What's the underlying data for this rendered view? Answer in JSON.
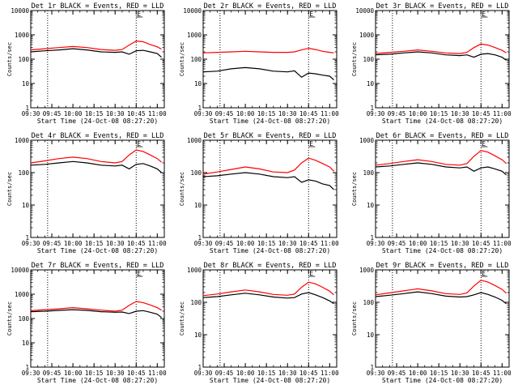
{
  "figure": {
    "xlabel": "Start Time (24-Oct-08 08:27:20)",
    "ylabel": "Counts/sec",
    "x_tick_labels": [
      "09:30",
      "09:45",
      "10:00",
      "10:15",
      "10:30",
      "10:45",
      "11:00"
    ],
    "y_tick_labels_max4": [
      "1",
      "10",
      "100",
      "1000",
      "10000"
    ],
    "y_tick_labels_max3": [
      "1",
      "10",
      "100",
      "1000"
    ],
    "annotation_letter": "E",
    "colors": {
      "events": "#000000",
      "lld": "#ff0000",
      "axis": "#000000",
      "guide": "#000000"
    }
  },
  "chart_data": [
    {
      "type": "line",
      "title": "Det 1r BLACK = Events, RED = LLD",
      "y_scale": "log",
      "ylim": [
        1,
        10000
      ],
      "xlim": [
        "09:30",
        "11:05"
      ],
      "vlines": [
        "09:42",
        "10:45"
      ],
      "series": [
        {
          "name": "Events",
          "color": "#000000",
          "x": [
            "09:30",
            "09:40",
            "09:50",
            "10:00",
            "10:10",
            "10:20",
            "10:30",
            "10:35",
            "10:40",
            "10:45",
            "10:50",
            "10:55",
            "11:00",
            "11:03"
          ],
          "values": [
            200,
            220,
            240,
            270,
            240,
            200,
            190,
            200,
            160,
            220,
            230,
            200,
            170,
            120
          ]
        },
        {
          "name": "LLD",
          "color": "#ff0000",
          "x": [
            "09:30",
            "09:40",
            "09:50",
            "10:00",
            "10:10",
            "10:20",
            "10:30",
            "10:35",
            "10:40",
            "10:45",
            "10:50",
            "10:55",
            "11:00",
            "11:03"
          ],
          "values": [
            240,
            270,
            300,
            330,
            300,
            250,
            230,
            250,
            380,
            560,
            520,
            400,
            320,
            260
          ]
        }
      ]
    },
    {
      "type": "line",
      "title": "Det 2r BLACK = Events, RED = LLD",
      "y_scale": "log",
      "ylim": [
        1,
        10000
      ],
      "xlim": [
        "09:30",
        "11:05"
      ],
      "vlines": [
        "09:42",
        "10:45"
      ],
      "series": [
        {
          "name": "Events",
          "color": "#000000",
          "x": [
            "09:30",
            "09:40",
            "09:50",
            "10:00",
            "10:10",
            "10:20",
            "10:30",
            "10:35",
            "10:40",
            "10:45",
            "10:50",
            "10:55",
            "11:00",
            "11:03"
          ],
          "values": [
            30,
            32,
            40,
            45,
            40,
            32,
            30,
            33,
            18,
            27,
            25,
            22,
            20,
            14
          ]
        },
        {
          "name": "LLD",
          "color": "#ff0000",
          "x": [
            "09:30",
            "09:40",
            "09:50",
            "10:00",
            "10:10",
            "10:20",
            "10:30",
            "10:35",
            "10:40",
            "10:45",
            "10:50",
            "10:55",
            "11:00",
            "11:03"
          ],
          "values": [
            180,
            190,
            200,
            210,
            200,
            190,
            190,
            200,
            240,
            280,
            250,
            210,
            190,
            180
          ]
        }
      ]
    },
    {
      "type": "line",
      "title": "Det 3r BLACK = Events, RED = LLD",
      "y_scale": "log",
      "ylim": [
        1,
        10000
      ],
      "xlim": [
        "09:30",
        "11:05"
      ],
      "vlines": [
        "09:42",
        "10:45"
      ],
      "series": [
        {
          "name": "Events",
          "color": "#000000",
          "x": [
            "09:30",
            "09:40",
            "09:50",
            "10:00",
            "10:10",
            "10:20",
            "10:30",
            "10:35",
            "10:40",
            "10:45",
            "10:50",
            "10:55",
            "11:00",
            "11:03"
          ],
          "values": [
            150,
            160,
            180,
            200,
            180,
            150,
            140,
            150,
            120,
            160,
            170,
            150,
            120,
            90
          ]
        },
        {
          "name": "LLD",
          "color": "#ff0000",
          "x": [
            "09:30",
            "09:40",
            "09:50",
            "10:00",
            "10:10",
            "10:20",
            "10:30",
            "10:35",
            "10:40",
            "10:45",
            "10:50",
            "10:55",
            "11:00",
            "11:03"
          ],
          "values": [
            170,
            190,
            210,
            240,
            210,
            180,
            170,
            190,
            300,
            420,
            380,
            300,
            230,
            180
          ]
        }
      ]
    },
    {
      "type": "line",
      "title": "Det 4r BLACK = Events, RED = LLD",
      "y_scale": "log",
      "ylim": [
        1,
        1000
      ],
      "xlim": [
        "09:30",
        "11:05"
      ],
      "vlines": [
        "09:42",
        "10:45"
      ],
      "series": [
        {
          "name": "Events",
          "color": "#000000",
          "x": [
            "09:30",
            "09:40",
            "09:50",
            "10:00",
            "10:10",
            "10:20",
            "10:30",
            "10:35",
            "10:40",
            "10:45",
            "10:50",
            "10:55",
            "11:00",
            "11:03"
          ],
          "values": [
            170,
            180,
            200,
            220,
            200,
            170,
            160,
            170,
            130,
            180,
            190,
            160,
            130,
            100
          ]
        },
        {
          "name": "LLD",
          "color": "#ff0000",
          "x": [
            "09:30",
            "09:40",
            "09:50",
            "10:00",
            "10:10",
            "10:20",
            "10:30",
            "10:35",
            "10:40",
            "10:45",
            "10:50",
            "10:55",
            "11:00",
            "11:03"
          ],
          "values": [
            200,
            230,
            270,
            300,
            270,
            220,
            200,
            220,
            350,
            500,
            450,
            350,
            270,
            210
          ]
        }
      ]
    },
    {
      "type": "line",
      "title": "Det 5r BLACK = Events, RED = LLD",
      "y_scale": "log",
      "ylim": [
        1,
        1000
      ],
      "xlim": [
        "09:30",
        "11:05"
      ],
      "vlines": [
        "09:42",
        "10:45"
      ],
      "series": [
        {
          "name": "Events",
          "color": "#000000",
          "x": [
            "09:30",
            "09:40",
            "09:50",
            "10:00",
            "10:10",
            "10:20",
            "10:30",
            "10:35",
            "10:40",
            "10:45",
            "10:50",
            "10:55",
            "11:00",
            "11:03"
          ],
          "values": [
            75,
            80,
            90,
            100,
            90,
            75,
            70,
            75,
            50,
            60,
            55,
            45,
            40,
            30
          ]
        },
        {
          "name": "LLD",
          "color": "#ff0000",
          "x": [
            "09:30",
            "09:40",
            "09:50",
            "10:00",
            "10:10",
            "10:20",
            "10:30",
            "10:35",
            "10:40",
            "10:45",
            "10:50",
            "10:55",
            "11:00",
            "11:03"
          ],
          "values": [
            90,
            105,
            125,
            150,
            130,
            105,
            100,
            120,
            200,
            280,
            240,
            190,
            150,
            110
          ]
        }
      ]
    },
    {
      "type": "line",
      "title": "Det 6r BLACK = Events, RED = LLD",
      "y_scale": "log",
      "ylim": [
        1,
        1000
      ],
      "xlim": [
        "09:30",
        "11:05"
      ],
      "vlines": [
        "09:42",
        "10:45"
      ],
      "series": [
        {
          "name": "Events",
          "color": "#000000",
          "x": [
            "09:30",
            "09:40",
            "09:50",
            "10:00",
            "10:10",
            "10:20",
            "10:30",
            "10:35",
            "10:40",
            "10:45",
            "10:50",
            "10:55",
            "11:00",
            "11:03"
          ],
          "values": [
            150,
            160,
            180,
            200,
            180,
            150,
            140,
            150,
            110,
            140,
            150,
            130,
            110,
            85
          ]
        },
        {
          "name": "LLD",
          "color": "#ff0000",
          "x": [
            "09:30",
            "09:40",
            "09:50",
            "10:00",
            "10:10",
            "10:20",
            "10:30",
            "10:35",
            "10:40",
            "10:45",
            "10:50",
            "10:55",
            "11:00",
            "11:03"
          ],
          "values": [
            170,
            190,
            220,
            250,
            220,
            180,
            170,
            190,
            320,
            480,
            430,
            330,
            250,
            190
          ]
        }
      ]
    },
    {
      "type": "line",
      "title": "Det 7r BLACK = Events, RED = LLD",
      "y_scale": "log",
      "ylim": [
        1,
        10000
      ],
      "xlim": [
        "09:30",
        "11:05"
      ],
      "vlines": [
        "09:42",
        "10:45"
      ],
      "series": [
        {
          "name": "Events",
          "color": "#000000",
          "x": [
            "09:30",
            "09:40",
            "09:50",
            "10:00",
            "10:10",
            "10:20",
            "10:30",
            "10:35",
            "10:40",
            "10:45",
            "10:50",
            "10:55",
            "11:00",
            "11:03"
          ],
          "values": [
            190,
            200,
            215,
            230,
            215,
            190,
            180,
            185,
            160,
            200,
            210,
            180,
            150,
            110
          ]
        },
        {
          "name": "LLD",
          "color": "#ff0000",
          "x": [
            "09:30",
            "09:40",
            "09:50",
            "10:00",
            "10:10",
            "10:20",
            "10:30",
            "10:35",
            "10:40",
            "10:45",
            "10:50",
            "10:55",
            "11:00",
            "11:03"
          ],
          "values": [
            210,
            230,
            250,
            280,
            250,
            220,
            200,
            220,
            350,
            500,
            450,
            360,
            280,
            220
          ]
        }
      ]
    },
    {
      "type": "line",
      "title": "Det 8r BLACK = Events, RED = LLD",
      "y_scale": "log",
      "ylim": [
        1,
        1000
      ],
      "xlim": [
        "09:30",
        "11:05"
      ],
      "vlines": [
        "09:42",
        "10:45"
      ],
      "series": [
        {
          "name": "Events",
          "color": "#000000",
          "x": [
            "09:30",
            "09:40",
            "09:50",
            "10:00",
            "10:10",
            "10:20",
            "10:30",
            "10:35",
            "10:40",
            "10:45",
            "10:50",
            "10:55",
            "11:00",
            "11:03"
          ],
          "values": [
            140,
            150,
            170,
            190,
            170,
            145,
            135,
            140,
            180,
            200,
            170,
            140,
            110,
            90
          ]
        },
        {
          "name": "LLD",
          "color": "#ff0000",
          "x": [
            "09:30",
            "09:40",
            "09:50",
            "10:00",
            "10:10",
            "10:20",
            "10:30",
            "10:35",
            "10:40",
            "10:45",
            "10:50",
            "10:55",
            "11:00",
            "11:03"
          ],
          "values": [
            160,
            180,
            210,
            240,
            210,
            175,
            165,
            180,
            290,
            420,
            370,
            290,
            220,
            170
          ]
        }
      ]
    },
    {
      "type": "line",
      "title": "Det 9r BLACK = Events, RED = LLD",
      "y_scale": "log",
      "ylim": [
        1,
        1000
      ],
      "xlim": [
        "09:30",
        "11:05"
      ],
      "vlines": [
        "09:42",
        "10:45"
      ],
      "series": [
        {
          "name": "Events",
          "color": "#000000",
          "x": [
            "09:30",
            "09:40",
            "09:50",
            "10:00",
            "10:10",
            "10:20",
            "10:30",
            "10:35",
            "10:40",
            "10:45",
            "10:50",
            "10:55",
            "11:00",
            "11:03"
          ],
          "values": [
            150,
            165,
            185,
            210,
            185,
            155,
            145,
            150,
            170,
            200,
            175,
            145,
            115,
            90
          ]
        },
        {
          "name": "LLD",
          "color": "#ff0000",
          "x": [
            "09:30",
            "09:40",
            "09:50",
            "10:00",
            "10:10",
            "10:20",
            "10:30",
            "10:35",
            "10:40",
            "10:45",
            "10:50",
            "10:55",
            "11:00",
            "11:03"
          ],
          "values": [
            170,
            195,
            225,
            260,
            225,
            185,
            175,
            195,
            320,
            480,
            420,
            330,
            250,
            190
          ]
        }
      ]
    }
  ]
}
